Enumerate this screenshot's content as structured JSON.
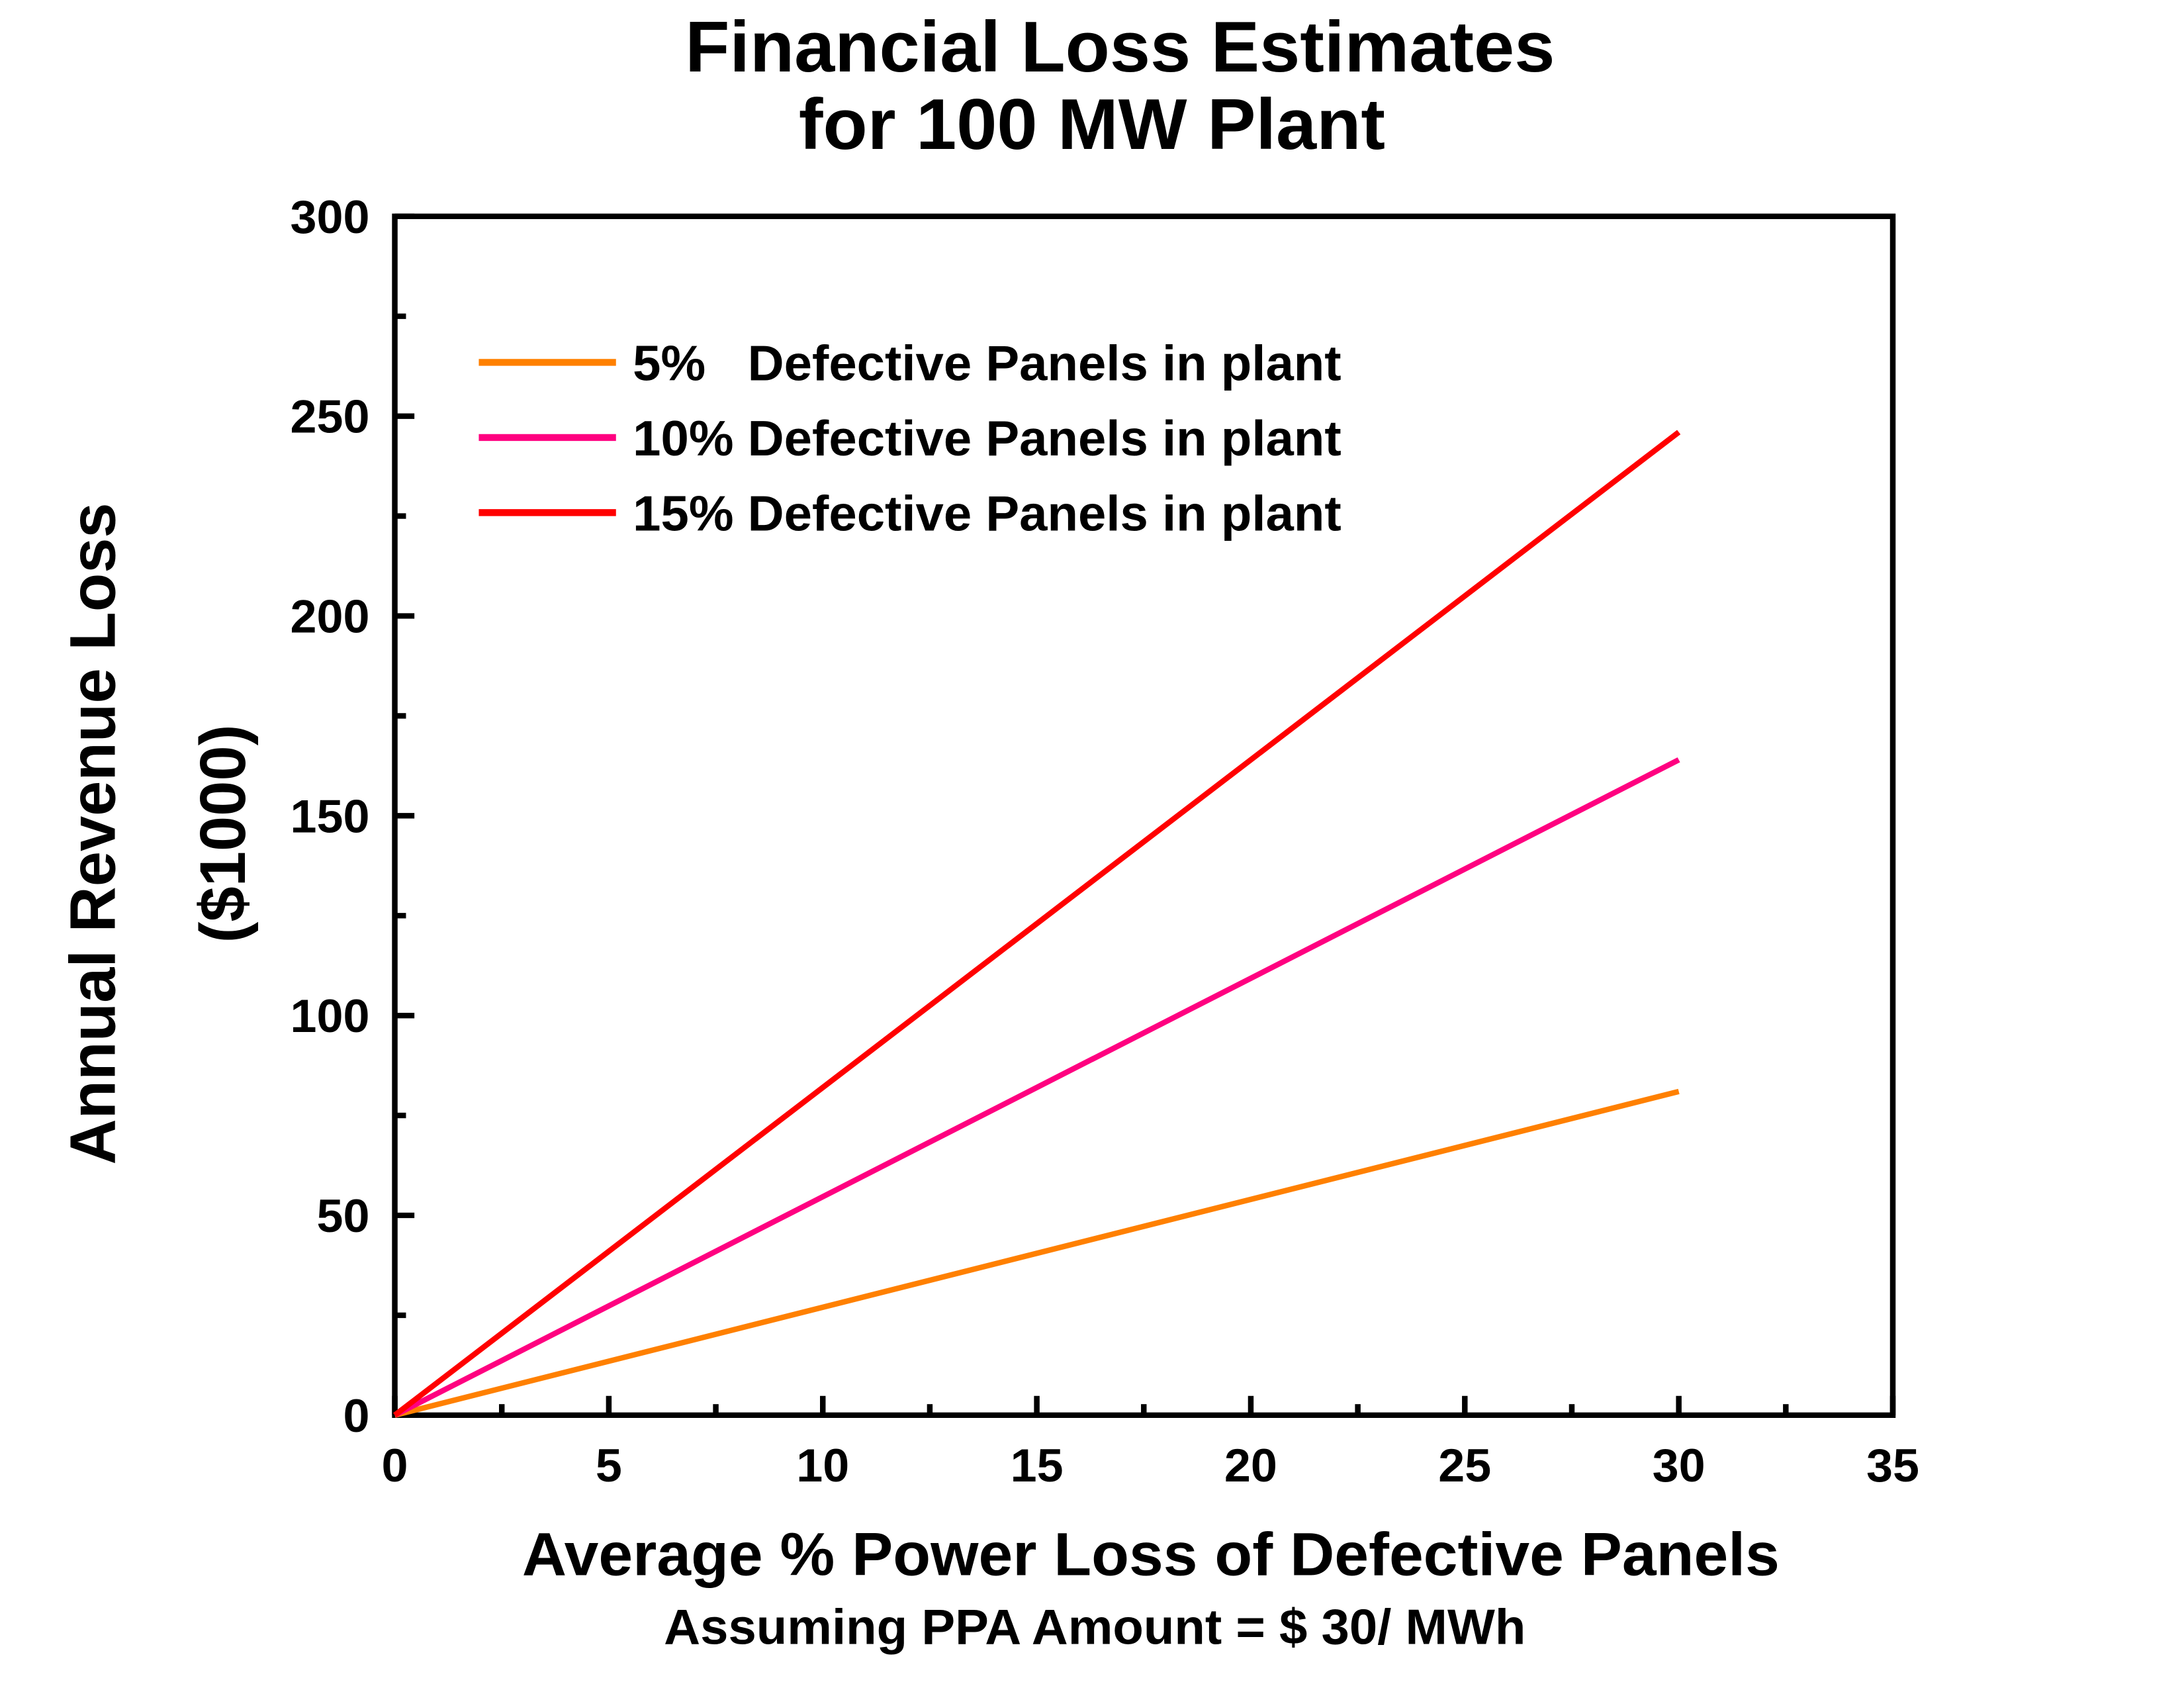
{
  "chart_data": {
    "type": "line",
    "title": [
      "Financial Loss Estimates",
      "for 100 MW Plant"
    ],
    "x_label": "Average % Power Loss of Defective Panels",
    "note": "Assuming PPA Amount = $ 30/ MWh",
    "y_label": [
      "Annual Revenue Loss",
      "($1000)"
    ],
    "x": [
      0,
      30
    ],
    "series": [
      {
        "name": "5%   Defective Panels in plant",
        "color": "#ff8000",
        "values": [
          0,
          81
        ]
      },
      {
        "name": "10% Defective Panels in plant",
        "color": "#ff0080",
        "values": [
          0,
          164
        ]
      },
      {
        "name": "15% Defective Panels in plant",
        "color": "#ff0000",
        "values": [
          0,
          246
        ]
      }
    ],
    "xlim": [
      0,
      35
    ],
    "xticks": [
      0,
      5,
      10,
      15,
      20,
      25,
      30,
      35
    ],
    "x_minor_ticks": [
      2.5,
      7.5,
      12.5,
      17.5,
      22.5,
      27.5,
      32.5
    ],
    "ylim": [
      0,
      300
    ],
    "yticks": [
      0,
      50,
      100,
      150,
      200,
      250,
      300
    ],
    "y_minor_ticks": [
      25,
      75,
      125,
      175,
      225,
      275
    ],
    "grid": false,
    "legend": "upper left"
  }
}
